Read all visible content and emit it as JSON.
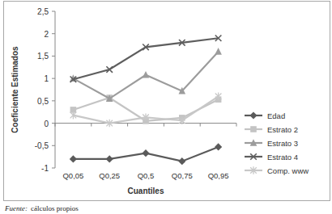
{
  "chart_data": {
    "type": "line",
    "categories": [
      "Q0,05",
      "Q0,25",
      "Q0,5",
      "Q0,75",
      "Q0,95"
    ],
    "x_label": "Cuantiles",
    "y_label": "Coeficiente Estimados",
    "ylim": [
      -1,
      2.5
    ],
    "yticks": [
      -1,
      {
        "value": -0.5,
        "label": "-0,5"
      },
      0,
      {
        "value": 0.5,
        "label": "0,5"
      },
      1,
      {
        "value": 1.5,
        "label": "1,5"
      },
      2,
      {
        "value": 2.5,
        "label": "2,5"
      }
    ],
    "grid": false,
    "legend": "right",
    "source_label": "Fuente:",
    "source": "cálculos propios",
    "series": [
      {
        "name": "Edad",
        "color": "#5a5a5a",
        "marker": "diamond",
        "values": [
          -0.8,
          -0.8,
          -0.67,
          -0.85,
          -0.53
        ]
      },
      {
        "name": "Estrato 2",
        "color": "#c4c4c4",
        "marker": "square",
        "values": [
          0.3,
          0.57,
          0.05,
          0.12,
          0.53
        ]
      },
      {
        "name": "Estrato 3",
        "color": "#9c9c9c",
        "marker": "triangle",
        "values": [
          1.0,
          0.55,
          1.08,
          0.72,
          1.6
        ]
      },
      {
        "name": "Estrato 4",
        "color": "#5e5e5e",
        "marker": "x",
        "values": [
          0.98,
          1.2,
          1.7,
          1.8,
          1.9
        ]
      },
      {
        "name": "Comp. www",
        "color": "#c8c8c8",
        "marker": "star",
        "values": [
          0.18,
          0.0,
          0.13,
          0.06,
          0.6
        ]
      }
    ]
  }
}
